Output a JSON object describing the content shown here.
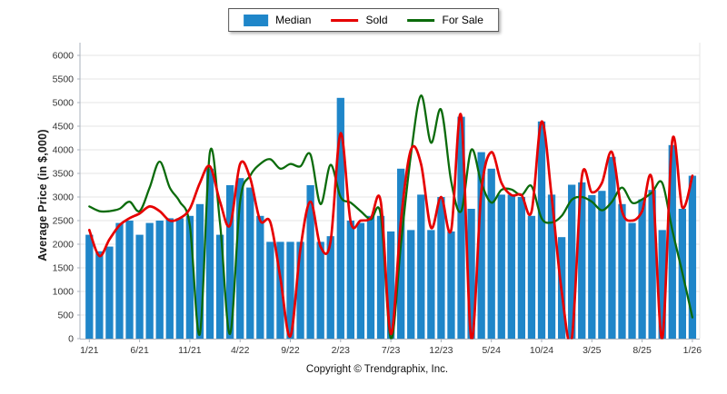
{
  "legend": {
    "items": [
      {
        "label": "Median",
        "type": "bar",
        "color": "#1F86C9"
      },
      {
        "label": "Sold",
        "type": "line",
        "color": "#E60000"
      },
      {
        "label": "For Sale",
        "type": "line",
        "color": "#0B6B0B"
      }
    ]
  },
  "y_axis": {
    "title": "Average Price (in $,000)",
    "ticks": [
      0,
      500,
      1000,
      1500,
      2000,
      2500,
      3000,
      3500,
      4000,
      4500,
      5000,
      5500,
      6000
    ],
    "min": 0,
    "max": 6000
  },
  "x_axis": {
    "tick_labels": [
      "1/21",
      "6/21",
      "11/21",
      "4/22",
      "9/22",
      "2/23",
      "7/23",
      "12/23",
      "5/24",
      "10/24",
      "3/25",
      "8/25",
      "1/26"
    ],
    "tick_step": 5
  },
  "footer": {
    "copyright": "Copyright © Trendgraphix, Inc."
  },
  "chart_data": {
    "type": "bar",
    "subtype": "combo-bar-line",
    "title": "",
    "xlabel": "",
    "ylabel": "Average Price (in $,000)",
    "ylim": [
      0,
      6000
    ],
    "grid": true,
    "legend_position": "top-center",
    "categories": [
      "1/21",
      "2/21",
      "3/21",
      "4/21",
      "5/21",
      "6/21",
      "7/21",
      "8/21",
      "9/21",
      "10/21",
      "11/21",
      "12/21",
      "1/22",
      "2/22",
      "3/22",
      "4/22",
      "5/22",
      "6/22",
      "7/22",
      "8/22",
      "9/22",
      "10/22",
      "11/22",
      "12/22",
      "1/23",
      "2/23",
      "3/23",
      "4/23",
      "5/23",
      "6/23",
      "7/23",
      "8/23",
      "9/23",
      "10/23",
      "11/23",
      "12/23",
      "1/24",
      "2/24",
      "3/24",
      "4/24",
      "5/24",
      "6/24",
      "7/24",
      "8/24",
      "9/24",
      "10/24",
      "11/24",
      "12/24",
      "1/25",
      "2/25",
      "3/25",
      "4/25",
      "5/25",
      "6/25",
      "7/25",
      "8/25",
      "9/25",
      "10/25",
      "11/25",
      "12/25",
      "1/26"
    ],
    "series": [
      {
        "name": "Median",
        "type": "bar",
        "color": "#1F86C9",
        "values": [
          2200,
          1850,
          1950,
          2450,
          2500,
          2200,
          2450,
          2500,
          2550,
          2550,
          2600,
          2850,
          3600,
          2200,
          3250,
          3400,
          3200,
          2600,
          2050,
          2050,
          2050,
          2050,
          3250,
          2050,
          2170,
          5100,
          2500,
          2450,
          2600,
          2600,
          2270,
          3600,
          2300,
          3050,
          2300,
          3000,
          2270,
          4700,
          2750,
          3950,
          3600,
          3050,
          3050,
          3000,
          2600,
          4600,
          3050,
          2150,
          3260,
          3310,
          3040,
          3130,
          3850,
          2850,
          2450,
          2950,
          3150,
          2300,
          4100,
          2750,
          3450
        ]
      },
      {
        "name": "Sold",
        "type": "line",
        "color": "#E60000",
        "values": [
          2300,
          1750,
          2100,
          2400,
          2550,
          2650,
          2800,
          2700,
          2500,
          2550,
          2750,
          3300,
          3650,
          2900,
          2400,
          3700,
          3400,
          2500,
          2470,
          1300,
          50,
          1900,
          2900,
          1950,
          2050,
          4350,
          2475,
          2500,
          2550,
          2900,
          100,
          2500,
          4000,
          3700,
          2350,
          3000,
          2300,
          4720,
          0,
          3100,
          3950,
          3300,
          3040,
          3040,
          2690,
          4600,
          3000,
          1000,
          0,
          3420,
          3100,
          3300,
          3950,
          2700,
          2500,
          2700,
          3350,
          0,
          4200,
          2780,
          3450
        ]
      },
      {
        "name": "For Sale",
        "type": "line",
        "color": "#0B6B0B",
        "values": [
          2800,
          2700,
          2700,
          2750,
          2900,
          2700,
          3200,
          3750,
          3200,
          2900,
          2400,
          100,
          3950,
          2450,
          100,
          2900,
          3450,
          3700,
          3800,
          3600,
          3700,
          3650,
          3900,
          2850,
          3680,
          3000,
          2880,
          2700,
          2525,
          2620,
          0,
          2000,
          3900,
          5150,
          4150,
          4850,
          3330,
          2700,
          4000,
          3300,
          2880,
          3150,
          3160,
          3040,
          3230,
          2550,
          2460,
          2600,
          2940,
          3000,
          2900,
          2720,
          2900,
          3200,
          2880,
          2950,
          3100,
          3300,
          2300,
          1400,
          450
        ]
      }
    ]
  },
  "style": {
    "grid_color": "#E4E4E4",
    "axis_color": "#AAB2BC",
    "tick_text_color": "#333333",
    "background": "#FFFFFF"
  }
}
